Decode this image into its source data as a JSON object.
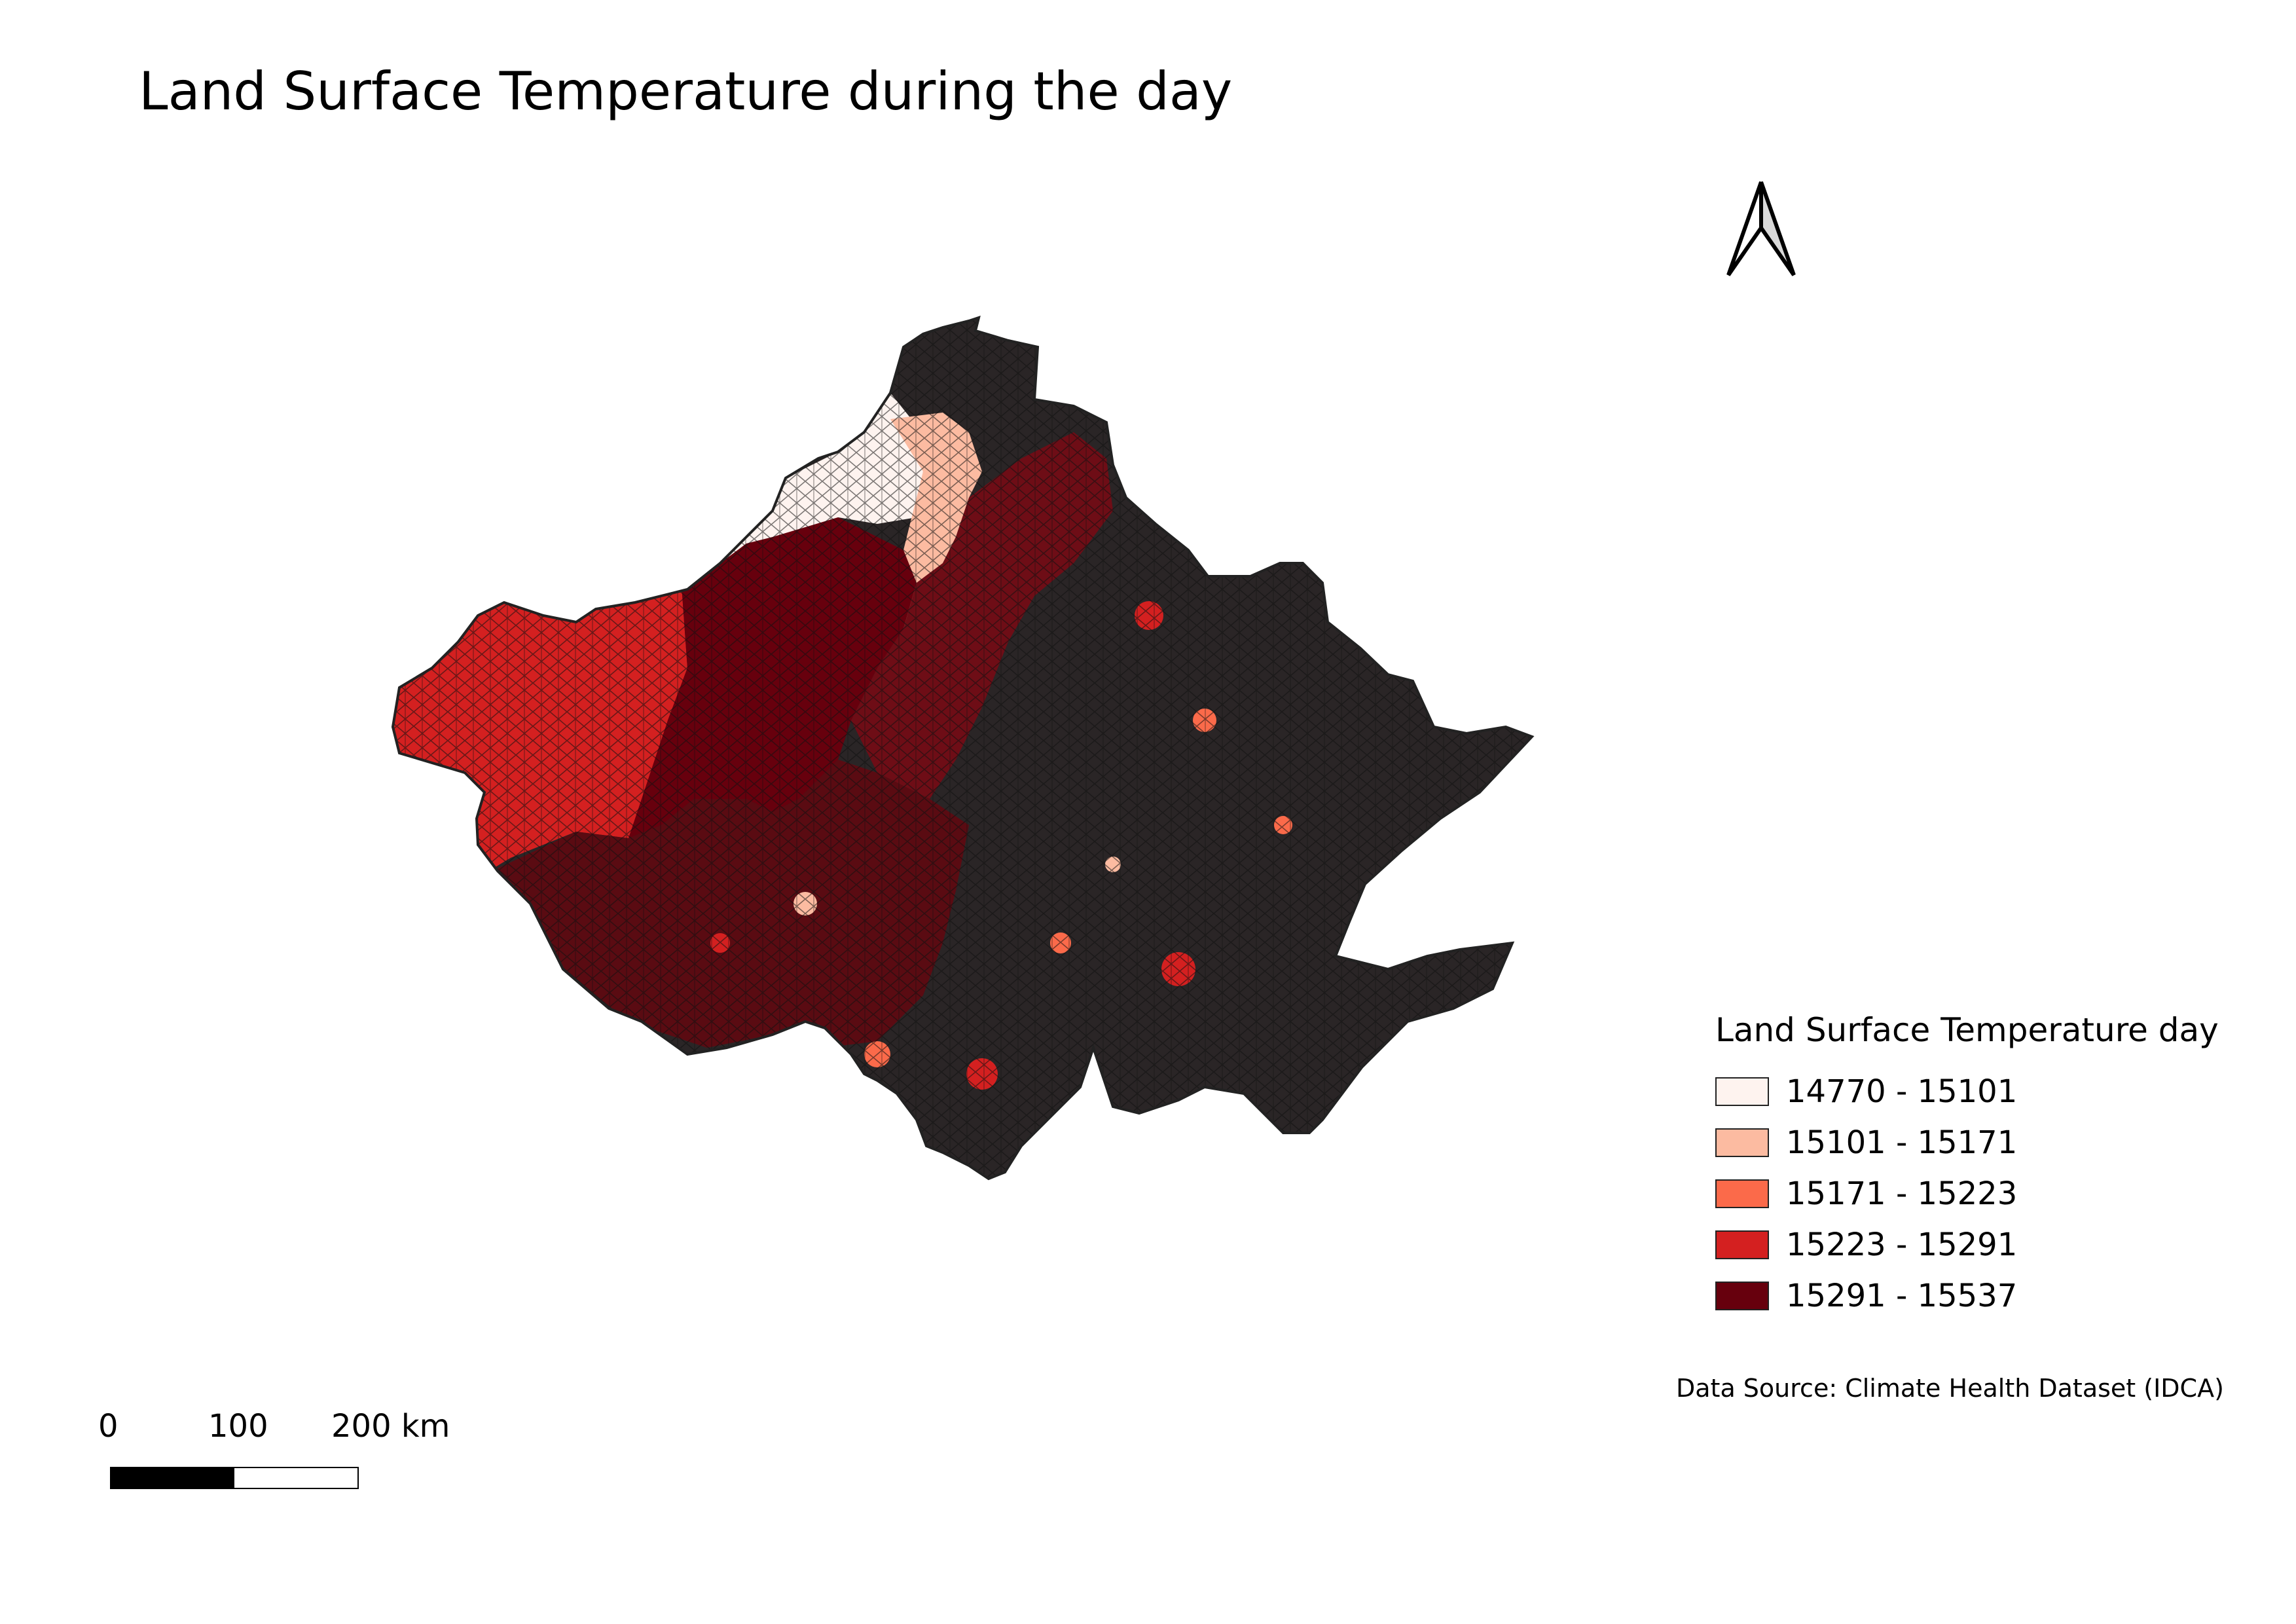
{
  "title": "Land Surface Temperature during the day",
  "map": {
    "region_outline_color": "#222222",
    "base_fill": "#2a2526",
    "icons": {
      "north_arrow": "north-arrow-icon"
    }
  },
  "legend": {
    "title": "Land Surface Temperature day",
    "items": [
      {
        "label": "14770 - 15101",
        "color": "#fef3ef"
      },
      {
        "label": "15101 - 15171",
        "color": "#fcbba1"
      },
      {
        "label": "15171 - 15223",
        "color": "#fb6a4a"
      },
      {
        "label": "15223 - 15291",
        "color": "#d42020"
      },
      {
        "label": "15291 - 15537",
        "color": "#67000d"
      }
    ]
  },
  "data_source": "Data Source: Climate Health Dataset (IDCA)",
  "scale_bar": {
    "labels": [
      "0",
      "100",
      "200 km"
    ],
    "segments": [
      {
        "color": "#000000"
      },
      {
        "color": "#ffffff"
      }
    ]
  }
}
